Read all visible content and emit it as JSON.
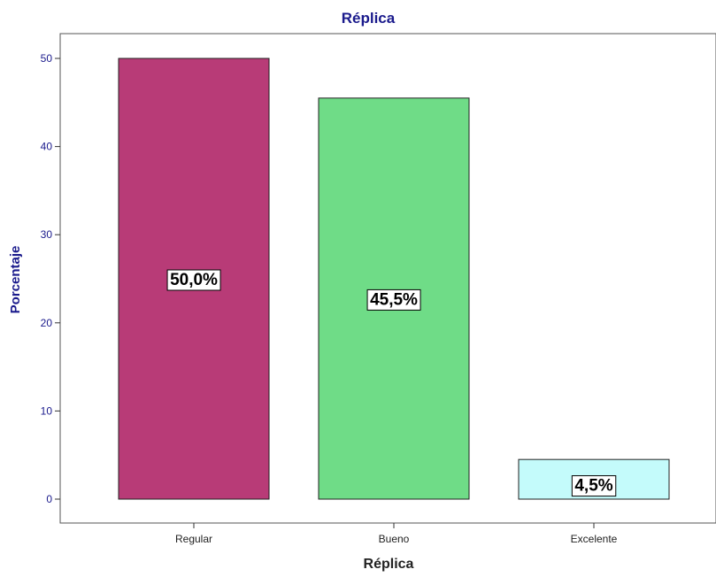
{
  "chart_data": {
    "type": "bar",
    "title": "Réplica",
    "xlabel": "Réplica",
    "ylabel": "Porcentaje",
    "categories": [
      "Regular",
      "Bueno",
      "Excelente"
    ],
    "values": [
      50.0,
      45.5,
      4.5
    ],
    "data_labels": [
      "50,0%",
      "45,5%",
      "4,5%"
    ],
    "colors": [
      "#b83b77",
      "#6fdc87",
      "#c4fbfb"
    ],
    "yticks": [
      "0",
      "10",
      "20",
      "30",
      "40",
      "50"
    ],
    "ylim": [
      0,
      53
    ],
    "grid": false
  }
}
